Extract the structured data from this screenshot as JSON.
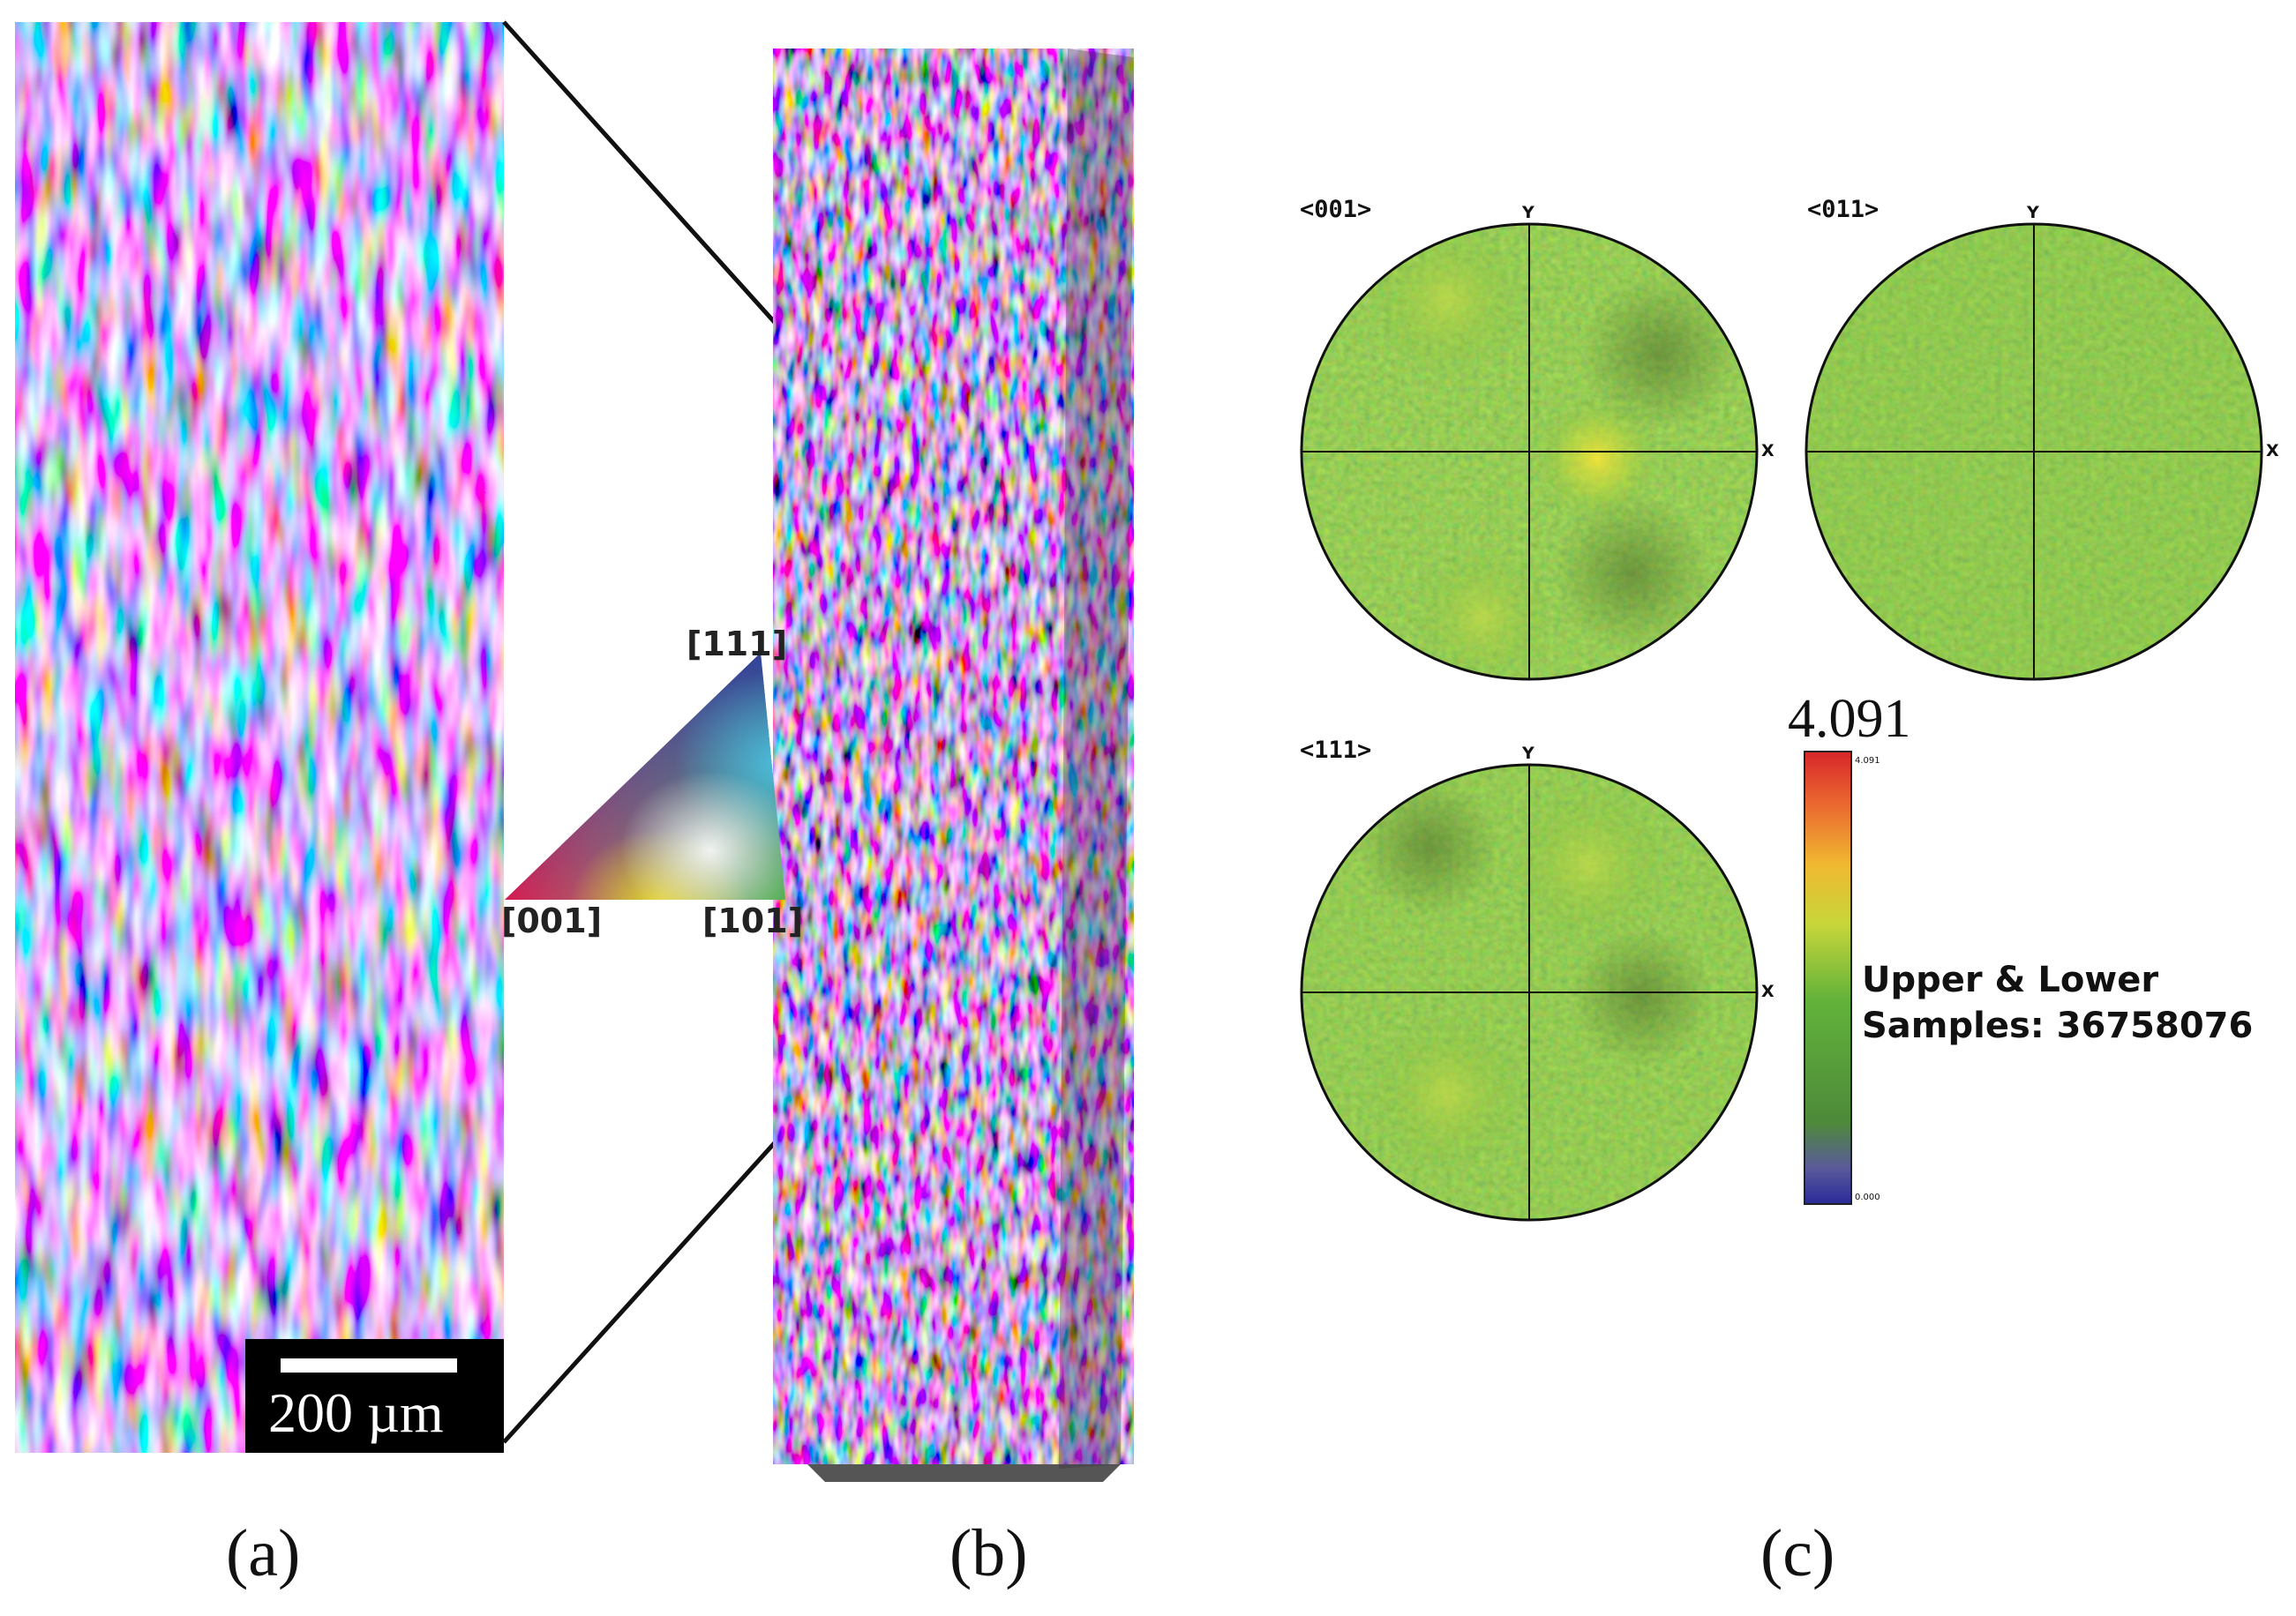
{
  "panels": {
    "a": "(a)",
    "b": "(b)",
    "c": "(c)"
  },
  "scale_bar": {
    "label": "200 µm"
  },
  "ipf_key": {
    "corner_111": "[111]",
    "corner_001": "[001]",
    "corner_101": "[101]"
  },
  "pole_figures": [
    {
      "label": "<001>",
      "y_axis": "Y",
      "x_axis": "X"
    },
    {
      "label": "<011>",
      "y_axis": "Y",
      "x_axis": "X"
    },
    {
      "label": "<111>",
      "y_axis": "Y",
      "x_axis": "X"
    }
  ],
  "colorbar": {
    "max_large": "4.091",
    "max_small": "4.091",
    "min_small": "0.000"
  },
  "legend": {
    "line1": "Upper & Lower",
    "line2": "Samples: 36758076"
  }
}
